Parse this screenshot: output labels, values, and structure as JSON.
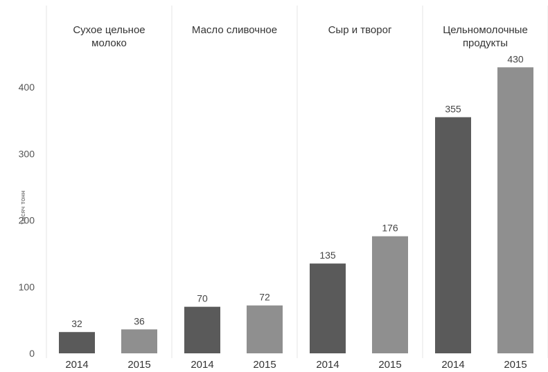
{
  "chart_data": {
    "type": "bar",
    "ylabel": "тысяч тонн",
    "xlabel": "",
    "ylim": [
      0,
      450
    ],
    "yticks": [
      0,
      100,
      200,
      300,
      400
    ],
    "grid": false,
    "panels": [
      {
        "title_lines": [
          "Сухое цельное",
          "молоко"
        ],
        "categories": [
          "2014",
          "2015"
        ],
        "values": [
          32,
          36
        ],
        "value_labels": [
          "32",
          "36"
        ]
      },
      {
        "title_lines": [
          "Масло сливочное"
        ],
        "categories": [
          "2014",
          "2015"
        ],
        "values": [
          70,
          72
        ],
        "value_labels": [
          "70",
          "72"
        ]
      },
      {
        "title_lines": [
          "Сыр и творог"
        ],
        "categories": [
          "2014",
          "2015"
        ],
        "values": [
          135,
          176
        ],
        "value_labels": [
          "135",
          "176"
        ]
      },
      {
        "title_lines": [
          "Цельномолочные",
          "продукты"
        ],
        "categories": [
          "2014",
          "2015"
        ],
        "values": [
          355,
          430
        ],
        "value_labels": [
          "355",
          "430"
        ]
      }
    ],
    "colors": {
      "y2014": "#5a5a5a",
      "y2015": "#8f8f8f",
      "separator": "#e6e6e6"
    }
  }
}
